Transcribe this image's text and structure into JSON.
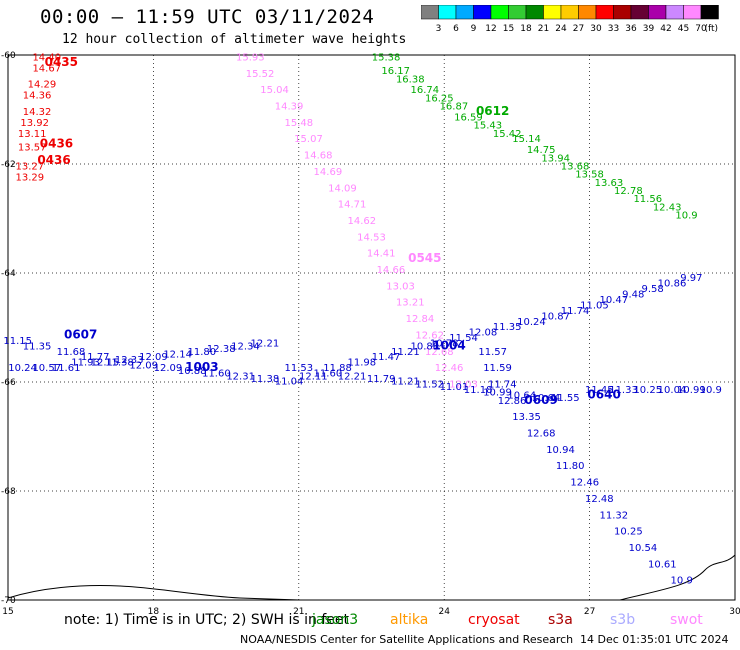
{
  "header": {
    "title": "00:00 – 11:59 UTC 03/11/2024",
    "subtitle": "12 hour collection of altimeter wave heights"
  },
  "colorbar": {
    "labels": [
      "3",
      "6",
      "9",
      "12",
      "15",
      "18",
      "21",
      "24",
      "27",
      "30",
      "33",
      "36",
      "39",
      "42",
      "45",
      "70"
    ],
    "colors": [
      "#808080",
      "#00ffff",
      "#00aaff",
      "#0000ff",
      "#00ff00",
      "#33cc33",
      "#008800",
      "#ffff00",
      "#ffcc00",
      "#ff8800",
      "#ff0000",
      "#aa0000",
      "#660033",
      "#aa00aa",
      "#cc88ff",
      "#ff88ff",
      "#000000"
    ],
    "unit": "(ft)"
  },
  "axes": {
    "x_ticks": [
      "15",
      "18",
      "21",
      "24",
      "27",
      "30"
    ],
    "y_ticks": [
      "-60",
      "-62",
      "-64",
      "-66",
      "-68",
      "-70"
    ]
  },
  "chart_data": {
    "type": "scatter",
    "xlim": [
      15,
      30
    ],
    "ylim": [
      -70,
      -60
    ],
    "grid": true,
    "passes": [
      {
        "id": "0435",
        "color": "#ee0000",
        "label_pos": [
          16.0,
          -60.4
        ],
        "points": [
          [
            15.8,
            -60.1,
            "14.40"
          ],
          [
            15.8,
            -60.3,
            "14.67"
          ],
          [
            15.7,
            -60.6,
            "14.29"
          ],
          [
            15.6,
            -60.8,
            "14.36"
          ],
          [
            15.6,
            -61.1,
            "14.32"
          ],
          [
            15.55,
            -61.3,
            "13.92"
          ],
          [
            15.5,
            -61.5,
            "13.11"
          ],
          [
            15.5,
            -61.75,
            "13.57"
          ],
          [
            15.45,
            -62.1,
            "13.27"
          ],
          [
            15.45,
            -62.3,
            "13.29"
          ]
        ],
        "extra_labels": [
          [
            16.1,
            -60.2,
            "0435"
          ],
          [
            16.0,
            -61.7,
            "0436"
          ],
          [
            15.95,
            -62.0,
            "0436"
          ]
        ]
      },
      {
        "id": "0544",
        "color": "#ff88ff",
        "label_pos": [
          20.8,
          -60.2
        ],
        "points": [
          [
            20.0,
            -60.1,
            "15.93"
          ],
          [
            20.2,
            -60.4,
            "15.52"
          ],
          [
            20.5,
            -60.7,
            "15.04"
          ],
          [
            20.8,
            -61.0,
            "14.39"
          ],
          [
            21.0,
            -61.3,
            "15.48"
          ],
          [
            21.2,
            -61.6,
            "15.07"
          ],
          [
            21.4,
            -61.9,
            "14.68"
          ],
          [
            21.6,
            -62.2,
            "14.69"
          ],
          [
            21.9,
            -62.5,
            "14.09"
          ],
          [
            22.1,
            -62.8,
            "14.71"
          ],
          [
            22.3,
            -63.1,
            "14.62"
          ],
          [
            22.5,
            -63.4,
            "14.53"
          ],
          [
            22.7,
            -63.7,
            "14.41"
          ],
          [
            22.9,
            -64.0,
            "14.66"
          ],
          [
            23.1,
            -64.3,
            "13.03"
          ],
          [
            23.3,
            -64.6,
            "13.21"
          ],
          [
            23.5,
            -64.9,
            "12.84"
          ],
          [
            23.7,
            -65.2,
            "12.62"
          ],
          [
            23.9,
            -65.5,
            "12.68"
          ],
          [
            24.1,
            -65.8,
            "12.46"
          ],
          [
            24.4,
            -66.1,
            "12.03"
          ]
        ],
        "extra_labels": [
          [
            23.6,
            -63.8,
            "0545"
          ]
        ]
      },
      {
        "id": "0611",
        "color": "#00aa00",
        "label_pos": [
          23.5,
          -60.1
        ],
        "points": [
          [
            22.8,
            -60.1,
            "15.38"
          ],
          [
            23.0,
            -60.35,
            "16.17"
          ],
          [
            23.3,
            -60.5,
            "16.38"
          ],
          [
            23.6,
            -60.7,
            "16.74"
          ],
          [
            23.9,
            -60.85,
            "16.25"
          ],
          [
            24.2,
            -61.0,
            "16.87"
          ],
          [
            24.5,
            -61.2,
            "16.59"
          ],
          [
            24.9,
            -61.35,
            "15.43"
          ],
          [
            25.3,
            -61.5,
            "15.42"
          ],
          [
            25.7,
            -61.6,
            "15.14"
          ],
          [
            26.0,
            -61.8,
            "14.75"
          ],
          [
            26.3,
            -61.95,
            "13.94"
          ],
          [
            26.7,
            -62.1,
            "13.68"
          ],
          [
            27.0,
            -62.25,
            "13.58"
          ],
          [
            27.4,
            -62.4,
            "13.63"
          ],
          [
            27.8,
            -62.55,
            "12.78"
          ],
          [
            28.2,
            -62.7,
            "11.56"
          ],
          [
            28.6,
            -62.85,
            "12.43"
          ],
          [
            29.0,
            -63.0,
            "10.9"
          ]
        ],
        "extra_labels": [
          [
            25.0,
            -61.1,
            "0612"
          ]
        ]
      },
      {
        "id": "0607",
        "color": "#0000cc",
        "label_pos": [
          16.0,
          -65.3
        ],
        "points": [
          [
            15.2,
            -65.3,
            "11.15"
          ],
          [
            15.6,
            -65.4,
            "11.35"
          ],
          [
            16.3,
            -65.5,
            "11.68"
          ],
          [
            16.8,
            -65.6,
            "11.77"
          ],
          [
            17.3,
            -65.7,
            "11.38"
          ],
          [
            17.8,
            -65.75,
            "12.09"
          ],
          [
            18.3,
            -65.8,
            "12.09"
          ],
          [
            18.8,
            -65.85,
            "10.88"
          ],
          [
            19.3,
            -65.9,
            "11.60"
          ],
          [
            19.8,
            -65.95,
            "12.31"
          ],
          [
            20.3,
            -66.0,
            "11.38"
          ],
          [
            20.8,
            -66.05,
            "11.04"
          ],
          [
            21.3,
            -65.95,
            "12.11"
          ],
          [
            21.8,
            -65.8,
            "11.88"
          ],
          [
            22.3,
            -65.7,
            "11.98"
          ],
          [
            22.8,
            -65.6,
            "11.47"
          ],
          [
            23.2,
            -65.5,
            "11.21"
          ],
          [
            23.6,
            -65.4,
            "10.88"
          ],
          [
            24.0,
            -65.35,
            "10.78"
          ],
          [
            24.4,
            -65.25,
            "11.54"
          ],
          [
            24.8,
            -65.15,
            "12.08"
          ],
          [
            25.3,
            -65.05,
            "11.35"
          ],
          [
            25.8,
            -64.95,
            "10.24"
          ],
          [
            26.3,
            -64.85,
            "10.87"
          ],
          [
            26.7,
            -64.75,
            "11.74"
          ],
          [
            27.1,
            -64.65,
            "11.05"
          ],
          [
            27.5,
            -64.55,
            "10.47"
          ],
          [
            27.9,
            -64.45,
            "9.48"
          ],
          [
            28.3,
            -64.35,
            "9.58"
          ],
          [
            28.7,
            -64.25,
            "10.86"
          ],
          [
            29.1,
            -64.15,
            "9.97"
          ]
        ],
        "extra_labels": [
          [
            16.5,
            -65.2,
            "0607"
          ]
        ]
      },
      {
        "id": "1003",
        "color": "#0000cc",
        "label_pos": [
          17.0,
          -65.8
        ],
        "points": [
          [
            15.3,
            -65.8,
            "10.24"
          ],
          [
            15.8,
            -65.8,
            "10.57"
          ],
          [
            16.2,
            -65.8,
            "11.61"
          ],
          [
            16.6,
            -65.7,
            "11.93"
          ],
          [
            17.0,
            -65.7,
            "12.15"
          ],
          [
            17.5,
            -65.65,
            "12.33"
          ],
          [
            18.0,
            -65.6,
            "12.09"
          ],
          [
            18.5,
            -65.55,
            "12.14"
          ],
          [
            19.0,
            -65.5,
            "11.80"
          ],
          [
            19.4,
            -65.45,
            "12.38"
          ],
          [
            19.9,
            -65.4,
            "12.34"
          ],
          [
            20.3,
            -65.35,
            "12.21"
          ],
          [
            21.0,
            -65.8,
            "11.53"
          ],
          [
            21.6,
            -65.9,
            "11.60"
          ],
          [
            22.1,
            -65.95,
            "12.21"
          ],
          [
            22.7,
            -66.0,
            "11.79"
          ],
          [
            23.2,
            -66.05,
            "11.21"
          ],
          [
            23.7,
            -66.1,
            "11.52"
          ],
          [
            24.2,
            -66.15,
            "11.01"
          ],
          [
            24.7,
            -66.2,
            "11.18"
          ],
          [
            25.1,
            -66.25,
            "10.99"
          ],
          [
            25.6,
            -66.3,
            "10.64"
          ],
          [
            26.1,
            -66.35,
            "10.64"
          ],
          [
            26.5,
            -66.35,
            "11.55"
          ]
        ],
        "extra_labels": [
          [
            24.1,
            -65.4,
            "1004"
          ],
          [
            19.0,
            -65.8,
            "1003"
          ]
        ]
      },
      {
        "id": "1004",
        "color": "#0000cc",
        "label_pos": [
          25.0,
          -65.5
        ],
        "points": [
          [
            25.0,
            -65.5,
            "11.57"
          ],
          [
            25.1,
            -65.8,
            "11.59"
          ],
          [
            25.2,
            -66.1,
            "11.74"
          ],
          [
            25.4,
            -66.4,
            "12.86"
          ],
          [
            25.7,
            -66.7,
            "13.35"
          ],
          [
            26.0,
            -67.0,
            "12.68"
          ],
          [
            26.4,
            -67.3,
            "10.94"
          ],
          [
            26.6,
            -67.6,
            "11.80"
          ],
          [
            26.9,
            -67.9,
            "12.46"
          ],
          [
            27.2,
            -68.2,
            "12.48"
          ],
          [
            27.5,
            -68.5,
            "11.32"
          ],
          [
            27.8,
            -68.8,
            "10.25"
          ],
          [
            28.1,
            -69.1,
            "10.54"
          ],
          [
            28.5,
            -69.4,
            "10.61"
          ],
          [
            28.9,
            -69.7,
            "10.9"
          ]
        ],
        "extra_labels": [
          [
            26.0,
            -66.4,
            "0609"
          ]
        ]
      },
      {
        "id": "0640",
        "color": "#0000cc",
        "label_pos": [
          27.0,
          -66.2
        ],
        "points": [
          [
            27.2,
            -66.2,
            "11.45"
          ],
          [
            27.7,
            -66.2,
            "11.33"
          ],
          [
            28.2,
            -66.2,
            "10.25"
          ],
          [
            28.7,
            -66.2,
            "10.04"
          ],
          [
            29.1,
            -66.2,
            "10.99"
          ],
          [
            29.5,
            -66.2,
            "10.9"
          ]
        ],
        "extra_labels": [
          [
            27.3,
            -66.3,
            "0640"
          ]
        ]
      }
    ]
  },
  "note": {
    "text": "note:  1) Time is in UTC;  2) SWH is in feet",
    "satellites": [
      {
        "name": "jason3",
        "color": "#008800"
      },
      {
        "name": "altika",
        "color": "#ff9900"
      },
      {
        "name": "cryosat",
        "color": "#ee0000"
      },
      {
        "name": "s3a",
        "color": "#aa0000"
      },
      {
        "name": "s3b",
        "color": "#aaaaff"
      },
      {
        "name": "swot",
        "color": "#ff88ff"
      }
    ]
  },
  "footer": {
    "center": "NOAA/NESDIS Center for Satellite Applications and Research",
    "timestamp": "14 Dec 01:35:01 UTC 2024"
  }
}
